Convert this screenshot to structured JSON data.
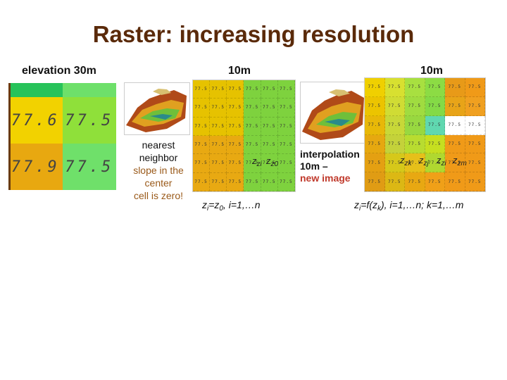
{
  "slide": {
    "title": "Raster: increasing resolution",
    "elevation_label": "elevation 30m",
    "res_label_left": "10m",
    "res_label_right": "10m"
  },
  "big_grid": {
    "rows": [
      [
        {
          "v": "",
          "c": "#27c35a"
        },
        {
          "v": "",
          "c": "#6ee06a"
        }
      ],
      [
        {
          "v": "77.6",
          "c": "#f2d200"
        },
        {
          "v": "77.5",
          "c": "#8fe03a"
        }
      ],
      [
        {
          "v": "77.9",
          "c": "#e8a810"
        },
        {
          "v": "77.5",
          "c": "#6fe06a"
        }
      ]
    ]
  },
  "nn_grid": {
    "cell_text": "77.5",
    "colors": [
      [
        "#e6c200",
        "#e6c200",
        "#e6c200",
        "#7ed23e",
        "#7ed23e",
        "#7ed23e"
      ],
      [
        "#e6c200",
        "#e6c200",
        "#e6c200",
        "#7ed23e",
        "#7ed23e",
        "#7ed23e"
      ],
      [
        "#e6c200",
        "#e6c200",
        "#e6c200",
        "#7ed23e",
        "#7ed23e",
        "#7ed23e"
      ],
      [
        "#e8a912",
        "#e8a912",
        "#e8a912",
        "#7ed23e",
        "#7ed23e",
        "#7ed23e"
      ],
      [
        "#e8a912",
        "#e8a912",
        "#e8a912",
        "#7ed23e",
        "#7ed23e",
        "#7ed23e"
      ],
      [
        "#e8a912",
        "#e8a912",
        "#e8a912",
        "#7ed23e",
        "#7ed23e",
        "#7ed23e"
      ]
    ]
  },
  "interp_grid": {
    "cell_text": "77.5",
    "colors": [
      [
        "#f0d000",
        "#d8e030",
        "#a8e040",
        "#8cdc44",
        "#e89a18",
        "#f09a18"
      ],
      [
        "#ecc400",
        "#d0dc34",
        "#a0dc40",
        "#84da46",
        "#e8a418",
        "#f0a020"
      ],
      [
        "#e8b808",
        "#c8d838",
        "#98d840",
        "#60d8b0",
        "#ffffff",
        "#ffffff"
      ],
      [
        "#e6a810",
        "#c4d23a",
        "#b8dc30",
        "#c6df20",
        "#f09a18",
        "#f09a18"
      ],
      [
        "#e4a012",
        "#d6c81a",
        "#e6c01a",
        "#b0d830",
        "#f09a18",
        "#f09a18"
      ],
      [
        "#e09c14",
        "#dcb814",
        "#e8a812",
        "#f0a018",
        "#f09a18",
        "#f09a18"
      ]
    ]
  },
  "nearest_neighbor": {
    "line1": "nearest",
    "line2": "neighbor",
    "line3": "slope in the",
    "line4": "center",
    "line5": "cell is zero!"
  },
  "interpolation": {
    "line1": "interpolation",
    "line2": "10m –",
    "line3": "new image"
  },
  "nn_cell_labels": {
    "zi": "zi",
    "z0": "z0"
  },
  "interp_cell_labels": {
    "zk": "zk",
    "zj": "zj",
    "zi": "zi",
    "zm": "zm"
  },
  "formula_left": {
    "z": "z",
    "i": "i",
    "eq": "=z",
    "zero": "0",
    "rest": ", i=1,…n"
  },
  "formula_right": {
    "z": "z",
    "i": "i",
    "eq": "=f(z",
    "k": "k",
    "rest": "),  i=1,…n;  k=1,…m"
  }
}
